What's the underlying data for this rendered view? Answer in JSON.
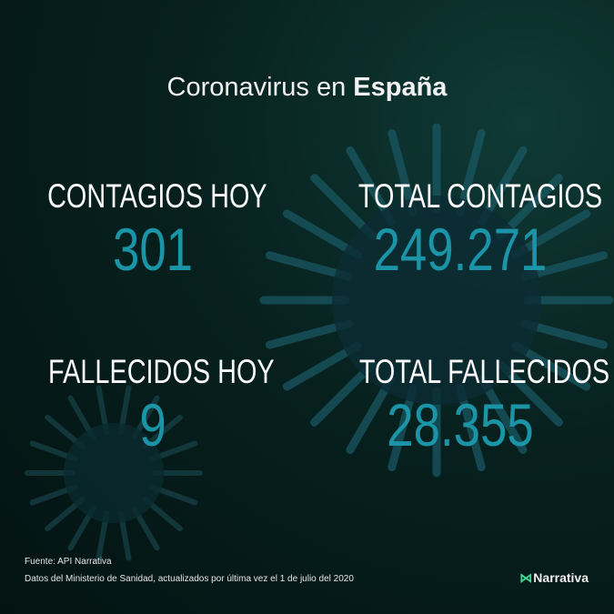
{
  "title": {
    "prefix": "Coronavirus en",
    "country": "España"
  },
  "stats": [
    {
      "label": "CONTAGIOS HOY",
      "value": "301"
    },
    {
      "label": "TOTAL CONTAGIOS",
      "value": "249.271"
    },
    {
      "label": "FALLECIDOS HOY",
      "value": "9"
    },
    {
      "label": "TOTAL FALLECIDOS",
      "value": "28.355"
    }
  ],
  "footer": {
    "source": "Fuente: API Narrativa",
    "note": "Datos del Ministerio de Sanidad, actualizados por última vez el  1 de julio del 2020"
  },
  "logo": {
    "text": "Narrativa",
    "icon": "narrativa-n-icon"
  },
  "colors": {
    "accent": "#1a94a6",
    "background": "#07211f",
    "logo_mark": "#3ddc97"
  }
}
